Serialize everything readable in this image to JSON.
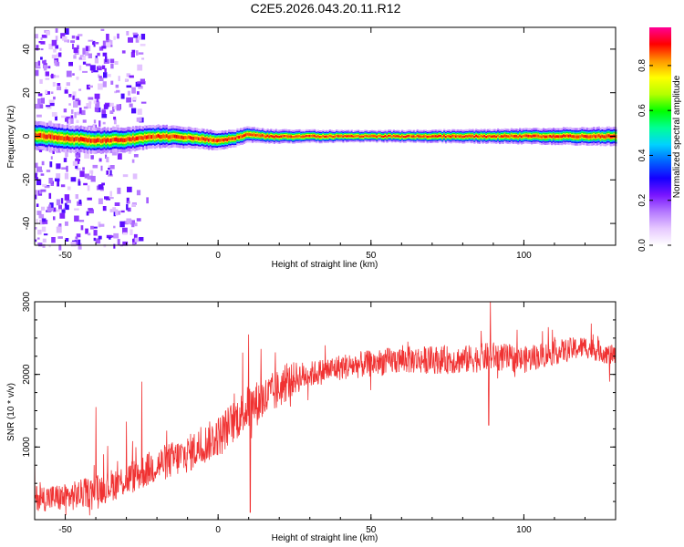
{
  "title": "C2E5.2026.043.20.11.R12",
  "colors": {
    "snr_line": "#f03232",
    "colormap": [
      "#ffffff",
      "#e6c8ff",
      "#b478ff",
      "#7814ff",
      "#1400ff",
      "#0064ff",
      "#00d2ff",
      "#00ff96",
      "#00ff00",
      "#b4ff00",
      "#ffff00",
      "#ff9600",
      "#ff0000",
      "#ff0096"
    ]
  },
  "chart_data": [
    {
      "type": "heatmap",
      "xlabel": "Height of straight line (km)",
      "ylabel": "Frequency (Hz)",
      "xlim": [
        -60,
        130
      ],
      "ylim": [
        -50,
        50
      ],
      "xticks": [
        -50,
        0,
        50,
        100
      ],
      "yticks": [
        -40,
        -20,
        0,
        20,
        40
      ],
      "colorbar": {
        "label": "Normalized spectral amplitude",
        "range": [
          0.0,
          0.97
        ],
        "ticks": [
          0.0,
          0.2,
          0.4,
          0.6,
          0.8
        ]
      },
      "ridge": {
        "frequency": 0,
        "description": "High amplitude (~0.9) near 0 Hz across all heights; broad low-amplitude scatter for heights below about -25 km",
        "frequency_offset_points": [
          [
            -60,
            0.5
          ],
          [
            -50,
            -1
          ],
          [
            -40,
            -2
          ],
          [
            -30,
            -1.5
          ],
          [
            -20,
            0
          ],
          [
            -10,
            -0.5
          ],
          [
            0,
            -2
          ],
          [
            5,
            -1
          ],
          [
            10,
            1
          ],
          [
            15,
            0
          ],
          [
            50,
            0
          ],
          [
            90,
            0
          ],
          [
            130,
            0
          ]
        ],
        "core_half_width_hz": [
          [
            -60,
            3
          ],
          [
            -25,
            2.5
          ],
          [
            0,
            2
          ],
          [
            15,
            1.5
          ],
          [
            50,
            1.2
          ],
          [
            90,
            1.5
          ],
          [
            130,
            2
          ]
        ]
      },
      "scatter_region": {
        "x_range": [
          -60,
          -25
        ],
        "y_range": [
          -50,
          50
        ],
        "amplitude": 0.15
      }
    },
    {
      "type": "line",
      "xlabel": "Height of straight line (km)",
      "ylabel": "SNR (10 * v/v)",
      "xlim": [
        -60,
        130
      ],
      "ylim": [
        0,
        3000
      ],
      "xticks": [
        -50,
        0,
        50,
        100
      ],
      "yticks": [
        1000,
        2000,
        3000
      ],
      "series": [
        {
          "trend": [
            [
              -60,
              300
            ],
            [
              -50,
              300
            ],
            [
              -40,
              400
            ],
            [
              -30,
              550
            ],
            [
              -20,
              750
            ],
            [
              -10,
              900
            ],
            [
              0,
              1150
            ],
            [
              5,
              1350
            ],
            [
              10,
              1550
            ],
            [
              15,
              1650
            ],
            [
              20,
              1800
            ],
            [
              25,
              1950
            ],
            [
              30,
              2000
            ],
            [
              40,
              2100
            ],
            [
              50,
              2150
            ],
            [
              60,
              2200
            ],
            [
              70,
              2200
            ],
            [
              80,
              2200
            ],
            [
              90,
              2250
            ],
            [
              100,
              2200
            ],
            [
              110,
              2300
            ],
            [
              120,
              2380
            ],
            [
              130,
              2250
            ]
          ],
          "noise_amplitude": [
            [
              -60,
              180
            ],
            [
              0,
              280
            ],
            [
              15,
              320
            ],
            [
              30,
              180
            ],
            [
              90,
              200
            ],
            [
              130,
              140
            ]
          ],
          "spikes": [
            [
              -60,
              1000
            ],
            [
              -40,
              1550
            ],
            [
              -30,
              1350
            ],
            [
              -25,
              1900
            ],
            [
              8,
              2300
            ],
            [
              10,
              2550
            ],
            [
              10.5,
              100
            ],
            [
              14,
              2350
            ],
            [
              35,
              2400
            ],
            [
              62,
              2450
            ],
            [
              86,
              2600
            ],
            [
              89,
              3000
            ],
            [
              88.5,
              1300
            ],
            [
              92,
              2250
            ],
            [
              108,
              2650
            ],
            [
              122,
              2700
            ],
            [
              128,
              1900
            ]
          ]
        }
      ]
    }
  ]
}
